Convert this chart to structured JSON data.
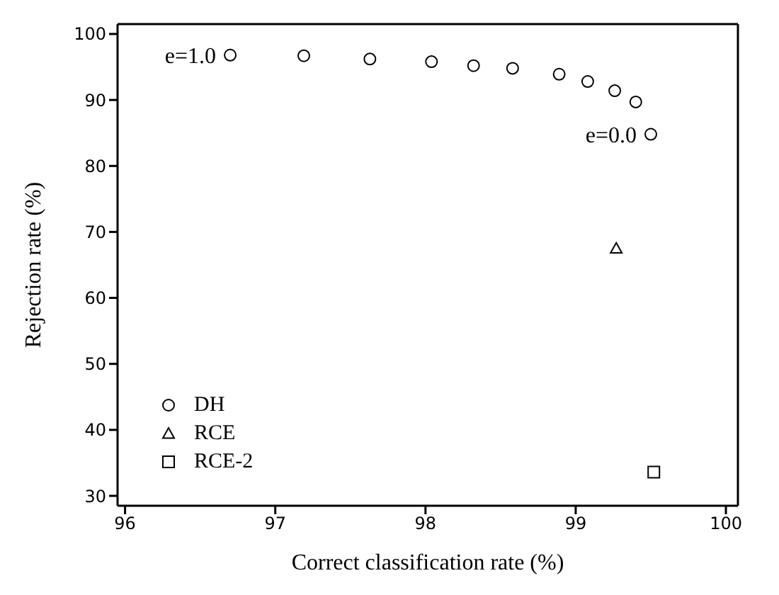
{
  "chart_data": {
    "type": "scatter",
    "xlabel": "Correct classification rate (%)",
    "ylabel": "Rejection rate (%)",
    "xlim": [
      95.95,
      100.08
    ],
    "xticks": [
      96,
      97,
      98,
      99,
      100
    ],
    "ylim": [
      28.5,
      101.5
    ],
    "yticks": [
      30,
      40,
      50,
      60,
      70,
      80,
      90,
      100
    ],
    "grid": false,
    "legend": "bottom left",
    "series": [
      {
        "name": "DH",
        "color": "#000000",
        "marker": "circle",
        "x": [
          96.7,
          97.19,
          97.63,
          98.04,
          98.32,
          98.58,
          98.89,
          99.08,
          99.26,
          99.4,
          99.5
        ],
        "values": [
          96.8,
          96.7,
          96.2,
          95.8,
          95.2,
          94.8,
          93.9,
          92.8,
          91.4,
          89.7,
          84.8
        ]
      },
      {
        "name": "RCE",
        "color": "#000000",
        "marker": "triangle",
        "x": [
          99.27
        ],
        "values": [
          67.5
        ]
      },
      {
        "name": "RCE-2",
        "color": "#000000",
        "marker": "square",
        "x": [
          99.52
        ],
        "values": [
          33.6
        ]
      }
    ],
    "annotations": [
      {
        "text": "e=1.0",
        "x": 96.7,
        "y": 96.8
      },
      {
        "text": "e=0.0",
        "x": 99.5,
        "y": 84.8
      }
    ]
  }
}
